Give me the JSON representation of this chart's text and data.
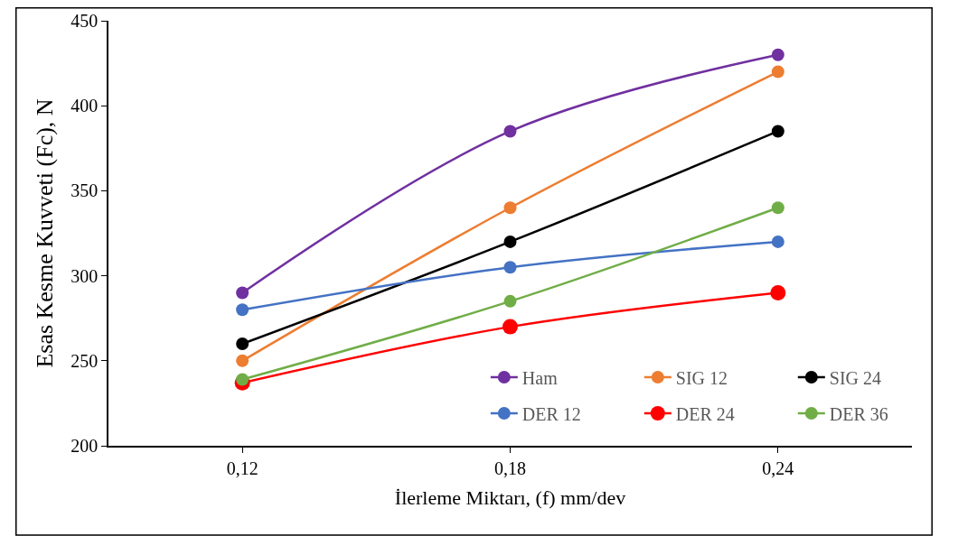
{
  "chart_data": {
    "type": "line",
    "xlabel": "İlerleme Miktarı, (f) mm/dev",
    "ylabel": "Esas Kesme Kuvveti (Fc), N",
    "categories": [
      "0,12",
      "0,18",
      "0,24"
    ],
    "series": [
      {
        "name": "Ham",
        "color": "#7030a0",
        "values": [
          290,
          385,
          430
        ]
      },
      {
        "name": "SIG 12",
        "color": "#ed7d31",
        "values": [
          250,
          340,
          420
        ]
      },
      {
        "name": "SIG 24",
        "color": "#000000",
        "values": [
          260,
          320,
          385
        ]
      },
      {
        "name": "DER 12",
        "color": "#4472c4",
        "values": [
          280,
          305,
          320
        ]
      },
      {
        "name": "DER 24",
        "color": "#ff0000",
        "values": [
          237,
          270,
          290
        ]
      },
      {
        "name": "DER 36",
        "color": "#70ad47",
        "values": [
          239,
          285,
          340
        ]
      }
    ],
    "ylim": [
      200,
      450
    ],
    "yticks": [
      200,
      250,
      300,
      350,
      400,
      450
    ],
    "legend": "bottom right",
    "marker": "circle",
    "line_style": "solid"
  }
}
